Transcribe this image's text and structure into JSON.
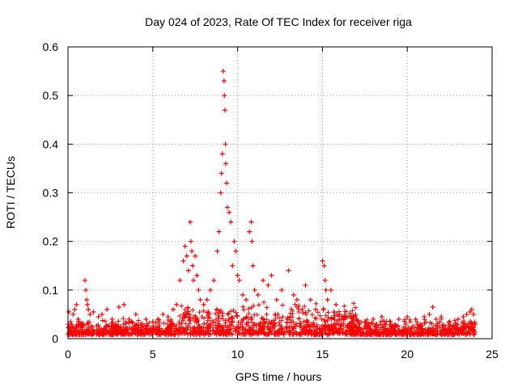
{
  "chart_data": {
    "type": "scatter",
    "title": "Day 024 of 2023, Rate Of TEC Index for receiver riga",
    "xlabel": "GPS time / hours",
    "ylabel": "ROTI / TECUs",
    "xlim": [
      0,
      25
    ],
    "ylim": [
      0,
      0.6
    ],
    "xticks": [
      0,
      5,
      10,
      15,
      20,
      25
    ],
    "xtick_labels": [
      "0",
      "5",
      "10",
      "15",
      "20",
      "25"
    ],
    "yticks": [
      0,
      0.1,
      0.2,
      0.3,
      0.4,
      0.5,
      0.6
    ],
    "ytick_labels": [
      "0",
      "0.1",
      "0.2",
      "0.3",
      "0.4",
      "0.5",
      "0.6"
    ],
    "grid": true,
    "marker": "+",
    "color": "#ff0000",
    "series": [
      {
        "x": [
          0.05,
          0.1,
          0.15,
          0.2,
          0.25,
          0.3,
          0.4,
          0.5,
          0.6,
          0.8,
          1.0,
          1.05,
          1.1,
          1.15,
          1.2,
          1.3,
          1.5,
          1.8,
          2.0,
          2.3,
          2.6,
          3.0,
          3.3,
          3.6,
          4.0,
          4.3,
          4.6,
          5.0,
          5.3,
          5.6,
          5.9,
          6.2,
          6.4,
          6.6,
          6.8,
          6.9,
          7.0,
          7.1,
          7.2,
          7.25,
          7.3,
          7.35,
          7.4,
          7.5,
          7.6,
          7.7,
          7.8,
          8.0,
          8.2,
          8.4,
          8.6,
          8.8,
          8.9,
          9.0,
          9.05,
          9.1,
          9.15,
          9.2,
          9.22,
          9.25,
          9.28,
          9.3,
          9.35,
          9.4,
          9.5,
          9.6,
          9.7,
          9.8,
          9.9,
          10.0,
          10.1,
          10.3,
          10.5,
          10.7,
          10.8,
          10.85,
          10.9,
          11.0,
          11.2,
          11.5,
          11.8,
          12.0,
          12.3,
          12.6,
          13.0,
          13.3,
          13.5,
          13.8,
          14.0,
          14.3,
          14.6,
          15.0,
          15.1,
          15.15,
          15.2,
          15.3,
          15.5,
          15.8,
          16.0,
          16.5,
          17.0,
          17.5,
          18.0,
          18.5,
          19.0,
          19.5,
          20.0,
          20.5,
          21.0,
          21.3,
          21.5,
          21.7,
          22.0,
          22.5,
          23.0,
          23.3,
          23.5,
          23.7,
          23.8,
          23.9,
          24.0
        ],
        "y": [
          0.055,
          0.02,
          0.035,
          0.03,
          0.025,
          0.05,
          0.06,
          0.07,
          0.04,
          0.03,
          0.12,
          0.1,
          0.08,
          0.07,
          0.06,
          0.05,
          0.055,
          0.045,
          0.05,
          0.06,
          0.04,
          0.065,
          0.07,
          0.04,
          0.05,
          0.03,
          0.04,
          0.035,
          0.04,
          0.05,
          0.045,
          0.06,
          0.07,
          0.12,
          0.16,
          0.19,
          0.17,
          0.14,
          0.24,
          0.2,
          0.18,
          0.15,
          0.12,
          0.17,
          0.13,
          0.1,
          0.08,
          0.07,
          0.08,
          0.1,
          0.12,
          0.18,
          0.22,
          0.3,
          0.34,
          0.38,
          0.55,
          0.53,
          0.5,
          0.47,
          0.4,
          0.36,
          0.32,
          0.27,
          0.26,
          0.24,
          0.15,
          0.2,
          0.18,
          0.13,
          0.12,
          0.09,
          0.08,
          0.22,
          0.24,
          0.2,
          0.15,
          0.1,
          0.09,
          0.12,
          0.11,
          0.13,
          0.08,
          0.1,
          0.14,
          0.09,
          0.08,
          0.06,
          0.11,
          0.08,
          0.06,
          0.16,
          0.15,
          0.12,
          0.1,
          0.08,
          0.1,
          0.07,
          0.05,
          0.045,
          0.04,
          0.035,
          0.04,
          0.045,
          0.035,
          0.04,
          0.045,
          0.04,
          0.045,
          0.05,
          0.065,
          0.04,
          0.045,
          0.035,
          0.04,
          0.045,
          0.05,
          0.055,
          0.06,
          0.05,
          0.03
        ]
      }
    ]
  }
}
